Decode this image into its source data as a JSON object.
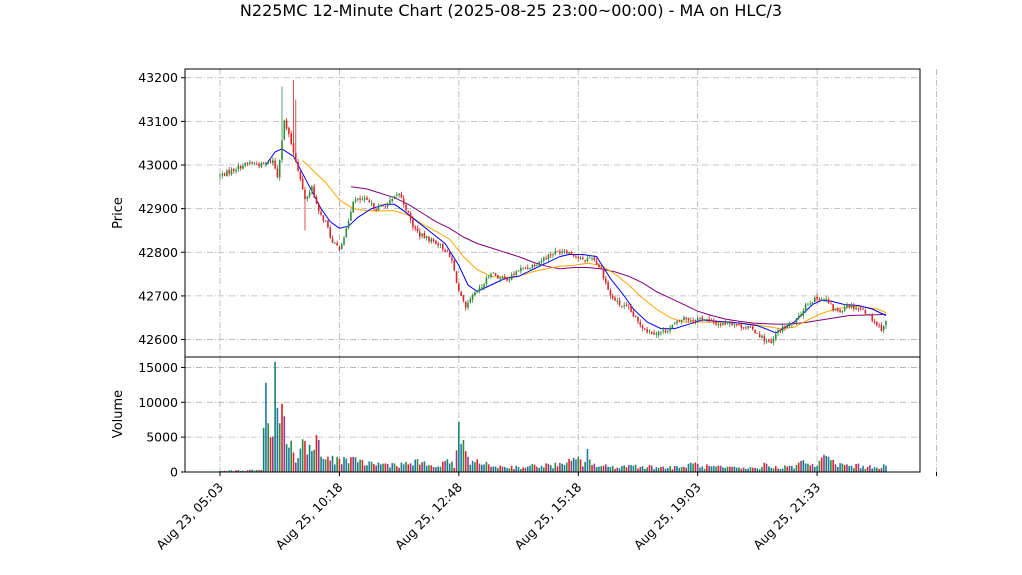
{
  "chart_data": [
    {
      "type": "candlestick",
      "title": "N225MC 12-Minute Chart (2025-08-25 23:00~00:00) - MA on HLC/3",
      "ylabel": "Price",
      "ylim": [
        42560,
        43220
      ],
      "yticks": [
        42600,
        42700,
        42800,
        42900,
        43000,
        43100,
        43200
      ],
      "xtick_labels": [
        "Aug 23, 05:03",
        "Aug 25, 10:18",
        "Aug 25, 12:48",
        "Aug 25, 15:18",
        "Aug 25, 19:03",
        "Aug 25, 21:33"
      ],
      "grid": true,
      "colors": {
        "up": "#2e8b3a",
        "down": "#d62728",
        "ma_fast": "#0000ff",
        "ma_mid": "#ffa500",
        "ma_slow": "#800080"
      },
      "close_anchors": [
        [
          0,
          42975
        ],
        [
          8,
          42995
        ],
        [
          13,
          43005
        ],
        [
          18,
          43000
        ],
        [
          23,
          43010
        ],
        [
          25,
          42975
        ],
        [
          28,
          43100
        ],
        [
          31,
          43050
        ],
        [
          34,
          42990
        ],
        [
          37,
          42920
        ],
        [
          40,
          42950
        ],
        [
          43,
          42890
        ],
        [
          46,
          42870
        ],
        [
          49,
          42820
        ],
        [
          52,
          42810
        ],
        [
          55,
          42850
        ],
        [
          58,
          42920
        ],
        [
          63,
          42920
        ],
        [
          68,
          42900
        ],
        [
          73,
          42910
        ],
        [
          78,
          42935
        ],
        [
          81,
          42900
        ],
        [
          84,
          42860
        ],
        [
          87,
          42840
        ],
        [
          91,
          42830
        ],
        [
          95,
          42820
        ],
        [
          98,
          42805
        ],
        [
          101,
          42780
        ],
        [
          104,
          42710
        ],
        [
          107,
          42670
        ],
        [
          110,
          42700
        ],
        [
          114,
          42720
        ],
        [
          118,
          42755
        ],
        [
          122,
          42740
        ],
        [
          126,
          42740
        ],
        [
          130,
          42760
        ],
        [
          134,
          42765
        ],
        [
          138,
          42775
        ],
        [
          142,
          42790
        ],
        [
          146,
          42800
        ],
        [
          150,
          42805
        ],
        [
          154,
          42795
        ],
        [
          158,
          42780
        ],
        [
          162,
          42790
        ],
        [
          166,
          42760
        ],
        [
          170,
          42700
        ],
        [
          174,
          42680
        ],
        [
          178,
          42670
        ],
        [
          182,
          42640
        ],
        [
          186,
          42620
        ],
        [
          190,
          42615
        ],
        [
          194,
          42620
        ],
        [
          198,
          42635
        ],
        [
          202,
          42650
        ],
        [
          206,
          42645
        ],
        [
          210,
          42650
        ],
        [
          214,
          42640
        ],
        [
          218,
          42635
        ],
        [
          222,
          42640
        ],
        [
          226,
          42632
        ],
        [
          230,
          42628
        ],
        [
          234,
          42615
        ],
        [
          237,
          42600
        ],
        [
          240,
          42590
        ],
        [
          243,
          42620
        ],
        [
          246,
          42628
        ],
        [
          249,
          42635
        ],
        [
          252,
          42650
        ],
        [
          255,
          42680
        ],
        [
          258,
          42690
        ],
        [
          261,
          42695
        ],
        [
          264,
          42690
        ],
        [
          267,
          42670
        ],
        [
          270,
          42665
        ],
        [
          273,
          42680
        ],
        [
          276,
          42675
        ],
        [
          279,
          42670
        ],
        [
          282,
          42660
        ],
        [
          285,
          42640
        ],
        [
          288,
          42625
        ],
        [
          290,
          42640
        ]
      ],
      "wick_spikes": [
        [
          27,
          43180
        ],
        [
          32,
          43195
        ],
        [
          33,
          43150
        ],
        [
          37,
          42850
        ]
      ],
      "ma_fast": [
        [
          20,
          43000
        ],
        [
          24,
          43030
        ],
        [
          27,
          43037
        ],
        [
          32,
          43020
        ],
        [
          36,
          42980
        ],
        [
          40,
          42940
        ],
        [
          44,
          42900
        ],
        [
          48,
          42870
        ],
        [
          52,
          42855
        ],
        [
          56,
          42860
        ],
        [
          60,
          42880
        ],
        [
          66,
          42900
        ],
        [
          72,
          42910
        ],
        [
          76,
          42910
        ],
        [
          80,
          42895
        ],
        [
          86,
          42870
        ],
        [
          92,
          42845
        ],
        [
          98,
          42820
        ],
        [
          104,
          42770
        ],
        [
          108,
          42725
        ],
        [
          112,
          42710
        ],
        [
          118,
          42725
        ],
        [
          124,
          42740
        ],
        [
          130,
          42745
        ],
        [
          136,
          42760
        ],
        [
          142,
          42775
        ],
        [
          148,
          42790
        ],
        [
          152,
          42795
        ],
        [
          158,
          42795
        ],
        [
          164,
          42790
        ],
        [
          170,
          42740
        ],
        [
          176,
          42700
        ],
        [
          180,
          42670
        ],
        [
          186,
          42640
        ],
        [
          192,
          42625
        ],
        [
          198,
          42625
        ],
        [
          204,
          42635
        ],
        [
          210,
          42645
        ],
        [
          216,
          42642
        ],
        [
          222,
          42640
        ],
        [
          228,
          42636
        ],
        [
          234,
          42632
        ],
        [
          238,
          42624
        ],
        [
          242,
          42615
        ],
        [
          246,
          42628
        ],
        [
          250,
          42640
        ],
        [
          254,
          42660
        ],
        [
          258,
          42680
        ],
        [
          262,
          42690
        ],
        [
          266,
          42688
        ],
        [
          272,
          42680
        ],
        [
          278,
          42678
        ],
        [
          284,
          42670
        ],
        [
          290,
          42655
        ]
      ],
      "ma_mid": [
        [
          36,
          43010
        ],
        [
          40,
          42990
        ],
        [
          46,
          42960
        ],
        [
          52,
          42920
        ],
        [
          58,
          42900
        ],
        [
          64,
          42895
        ],
        [
          70,
          42895
        ],
        [
          76,
          42895
        ],
        [
          82,
          42885
        ],
        [
          88,
          42865
        ],
        [
          94,
          42848
        ],
        [
          100,
          42830
        ],
        [
          106,
          42790
        ],
        [
          112,
          42760
        ],
        [
          118,
          42745
        ],
        [
          124,
          42742
        ],
        [
          130,
          42745
        ],
        [
          136,
          42755
        ],
        [
          142,
          42762
        ],
        [
          148,
          42768
        ],
        [
          154,
          42770
        ],
        [
          160,
          42775
        ],
        [
          166,
          42770
        ],
        [
          172,
          42750
        ],
        [
          178,
          42725
        ],
        [
          184,
          42695
        ],
        [
          190,
          42670
        ],
        [
          196,
          42650
        ],
        [
          202,
          42640
        ],
        [
          208,
          42640
        ],
        [
          214,
          42640
        ],
        [
          220,
          42640
        ],
        [
          226,
          42638
        ],
        [
          232,
          42635
        ],
        [
          238,
          42630
        ],
        [
          244,
          42625
        ],
        [
          250,
          42628
        ],
        [
          256,
          42645
        ],
        [
          262,
          42660
        ],
        [
          268,
          42670
        ],
        [
          274,
          42675
        ],
        [
          280,
          42675
        ],
        [
          286,
          42670
        ],
        [
          290,
          42662
        ]
      ],
      "ma_slow": [
        [
          57,
          42950
        ],
        [
          64,
          42945
        ],
        [
          70,
          42935
        ],
        [
          76,
          42925
        ],
        [
          82,
          42910
        ],
        [
          88,
          42890
        ],
        [
          94,
          42870
        ],
        [
          100,
          42855
        ],
        [
          106,
          42835
        ],
        [
          112,
          42820
        ],
        [
          118,
          42810
        ],
        [
          124,
          42800
        ],
        [
          130,
          42790
        ],
        [
          136,
          42778
        ],
        [
          142,
          42768
        ],
        [
          148,
          42762
        ],
        [
          154,
          42765
        ],
        [
          160,
          42765
        ],
        [
          166,
          42762
        ],
        [
          172,
          42755
        ],
        [
          178,
          42745
        ],
        [
          184,
          42730
        ],
        [
          190,
          42710
        ],
        [
          196,
          42695
        ],
        [
          202,
          42680
        ],
        [
          208,
          42665
        ],
        [
          214,
          42655
        ],
        [
          220,
          42647
        ],
        [
          226,
          42642
        ],
        [
          232,
          42638
        ],
        [
          238,
          42636
        ],
        [
          244,
          42635
        ],
        [
          250,
          42636
        ],
        [
          256,
          42640
        ],
        [
          262,
          42645
        ],
        [
          268,
          42650
        ],
        [
          274,
          42655
        ],
        [
          280,
          42656
        ],
        [
          286,
          42657
        ],
        [
          290,
          42658
        ]
      ]
    },
    {
      "type": "bar",
      "ylabel": "Volume",
      "ylim": [
        0,
        16500
      ],
      "yticks": [
        0,
        5000,
        10000,
        15000
      ],
      "grid": true,
      "volume_anchors": [
        [
          0,
          150
        ],
        [
          18,
          300
        ],
        [
          20,
          12800
        ],
        [
          21,
          7000
        ],
        [
          22,
          5000
        ],
        [
          23,
          5100
        ],
        [
          24,
          15800
        ],
        [
          25,
          9200
        ],
        [
          26,
          7000
        ],
        [
          27,
          9800
        ],
        [
          28,
          8000
        ],
        [
          29,
          4000
        ],
        [
          30,
          3500
        ],
        [
          32,
          2800
        ],
        [
          34,
          2000
        ],
        [
          36,
          4700
        ],
        [
          38,
          2500
        ],
        [
          40,
          3000
        ],
        [
          42,
          5300
        ],
        [
          44,
          2200
        ],
        [
          46,
          1800
        ],
        [
          52,
          1900
        ],
        [
          60,
          1400
        ],
        [
          70,
          1100
        ],
        [
          80,
          1100
        ],
        [
          88,
          1400
        ],
        [
          90,
          900
        ],
        [
          95,
          800
        ],
        [
          101,
          1500
        ],
        [
          102,
          600
        ],
        [
          104,
          7200
        ],
        [
          105,
          4000
        ],
        [
          106,
          4600
        ],
        [
          107,
          3000
        ],
        [
          108,
          2200
        ],
        [
          110,
          1600
        ],
        [
          113,
          1200
        ],
        [
          120,
          800
        ],
        [
          130,
          700
        ],
        [
          140,
          900
        ],
        [
          150,
          1000
        ],
        [
          155,
          1800
        ],
        [
          156,
          2200
        ],
        [
          158,
          800
        ],
        [
          160,
          3300
        ],
        [
          162,
          1000
        ],
        [
          170,
          700
        ],
        [
          180,
          900
        ],
        [
          190,
          700
        ],
        [
          200,
          600
        ],
        [
          206,
          1200
        ],
        [
          210,
          800
        ],
        [
          220,
          600
        ],
        [
          230,
          500
        ],
        [
          236,
          700
        ],
        [
          238,
          1200
        ],
        [
          240,
          600
        ],
        [
          248,
          900
        ],
        [
          250,
          500
        ],
        [
          254,
          1700
        ],
        [
          256,
          1200
        ],
        [
          260,
          900
        ],
        [
          264,
          2300
        ],
        [
          266,
          1700
        ],
        [
          268,
          1100
        ],
        [
          275,
          900
        ],
        [
          285,
          700
        ],
        [
          290,
          900
        ]
      ]
    }
  ]
}
